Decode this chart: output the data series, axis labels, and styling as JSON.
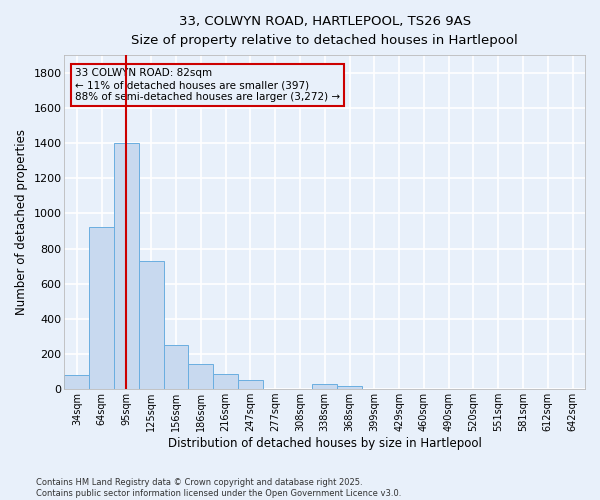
{
  "title_line1": "33, COLWYN ROAD, HARTLEPOOL, TS26 9AS",
  "title_line2": "Size of property relative to detached houses in Hartlepool",
  "xlabel": "Distribution of detached houses by size in Hartlepool",
  "ylabel": "Number of detached properties",
  "footer_line1": "Contains HM Land Registry data © Crown copyright and database right 2025.",
  "footer_line2": "Contains public sector information licensed under the Open Government Licence v3.0.",
  "annotation_line1": "33 COLWYN ROAD: 82sqm",
  "annotation_line2": "← 11% of detached houses are smaller (397)",
  "annotation_line3": "88% of semi-detached houses are larger (3,272) →",
  "bar_color": "#c8d9ef",
  "bar_edge_color": "#6aaee0",
  "bg_color": "#e8f0fa",
  "grid_color": "#ffffff",
  "vline_color": "#cc0000",
  "annotation_box_edge_color": "#cc0000",
  "annotation_box_face_color": "#e8f0fa",
  "categories": [
    "34sqm",
    "64sqm",
    "95sqm",
    "125sqm",
    "156sqm",
    "186sqm",
    "216sqm",
    "247sqm",
    "277sqm",
    "308sqm",
    "338sqm",
    "368sqm",
    "399sqm",
    "429sqm",
    "460sqm",
    "490sqm",
    "520sqm",
    "551sqm",
    "581sqm",
    "612sqm",
    "642sqm"
  ],
  "values": [
    80,
    920,
    1400,
    730,
    250,
    145,
    85,
    50,
    0,
    0,
    30,
    20,
    0,
    0,
    0,
    0,
    0,
    0,
    0,
    0,
    0
  ],
  "ylim": [
    0,
    1900
  ],
  "yticks": [
    0,
    200,
    400,
    600,
    800,
    1000,
    1200,
    1400,
    1600,
    1800
  ],
  "vline_x": 1.98,
  "figsize": [
    6.0,
    5.0
  ],
  "dpi": 100
}
